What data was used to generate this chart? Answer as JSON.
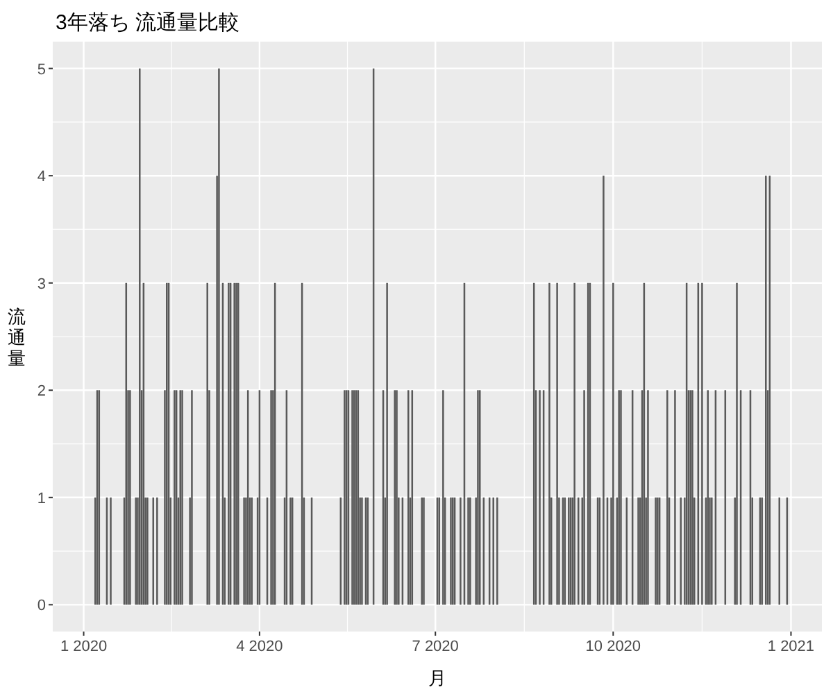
{
  "chart_data": {
    "type": "bar",
    "title": "3年落ち 流通量比較",
    "xlabel": "月",
    "ylabel": "流通量",
    "x": [
      "2020-01-07",
      "2020-01-08",
      "2020-01-09",
      "2020-01-13",
      "2020-01-15",
      "2020-01-22",
      "2020-01-23",
      "2020-01-24",
      "2020-01-25",
      "2020-01-28",
      "2020-01-29",
      "2020-01-30",
      "2020-01-31",
      "2020-02-01",
      "2020-02-02",
      "2020-02-03",
      "2020-02-06",
      "2020-02-08",
      "2020-02-12",
      "2020-02-13",
      "2020-02-14",
      "2020-02-15",
      "2020-02-17",
      "2020-02-18",
      "2020-02-19",
      "2020-02-20",
      "2020-02-21",
      "2020-02-25",
      "2020-02-26",
      "2020-03-05",
      "2020-03-06",
      "2020-03-10",
      "2020-03-11",
      "2020-03-13",
      "2020-03-14",
      "2020-03-16",
      "2020-03-17",
      "2020-03-19",
      "2020-03-20",
      "2020-03-21",
      "2020-03-24",
      "2020-03-25",
      "2020-03-26",
      "2020-03-27",
      "2020-03-28",
      "2020-03-31",
      "2020-04-01",
      "2020-04-05",
      "2020-04-07",
      "2020-04-08",
      "2020-04-09",
      "2020-04-14",
      "2020-04-15",
      "2020-04-17",
      "2020-04-18",
      "2020-04-23",
      "2020-04-24",
      "2020-04-28",
      "2020-05-13",
      "2020-05-15",
      "2020-05-16",
      "2020-05-17",
      "2020-05-19",
      "2020-05-20",
      "2020-05-21",
      "2020-05-22",
      "2020-05-23",
      "2020-05-24",
      "2020-05-26",
      "2020-05-27",
      "2020-05-30",
      "2020-06-04",
      "2020-06-05",
      "2020-06-06",
      "2020-06-10",
      "2020-06-11",
      "2020-06-12",
      "2020-06-14",
      "2020-06-17",
      "2020-06-18",
      "2020-06-19",
      "2020-06-24",
      "2020-06-25",
      "2020-07-02",
      "2020-07-03",
      "2020-07-05",
      "2020-07-06",
      "2020-07-09",
      "2020-07-10",
      "2020-07-11",
      "2020-07-14",
      "2020-07-16",
      "2020-07-18",
      "2020-07-19",
      "2020-07-22",
      "2020-07-23",
      "2020-07-24",
      "2020-07-26",
      "2020-07-29",
      "2020-07-31",
      "2020-08-02",
      "2020-08-21",
      "2020-08-22",
      "2020-08-24",
      "2020-08-26",
      "2020-08-29",
      "2020-08-30",
      "2020-09-02",
      "2020-09-03",
      "2020-09-05",
      "2020-09-06",
      "2020-09-08",
      "2020-09-09",
      "2020-09-10",
      "2020-09-11",
      "2020-09-13",
      "2020-09-15",
      "2020-09-16",
      "2020-09-18",
      "2020-09-19",
      "2020-09-23",
      "2020-09-24",
      "2020-09-26",
      "2020-09-28",
      "2020-09-30",
      "2020-10-01",
      "2020-10-03",
      "2020-10-04",
      "2020-10-05",
      "2020-10-08",
      "2020-10-11",
      "2020-10-14",
      "2020-10-15",
      "2020-10-16",
      "2020-10-17",
      "2020-10-18",
      "2020-10-19",
      "2020-10-23",
      "2020-10-24",
      "2020-10-25",
      "2020-10-29",
      "2020-10-30",
      "2020-11-02",
      "2020-11-05",
      "2020-11-07",
      "2020-11-08",
      "2020-11-09",
      "2020-11-10",
      "2020-11-11",
      "2020-11-12",
      "2020-11-14",
      "2020-11-16",
      "2020-11-18",
      "2020-11-19",
      "2020-11-20",
      "2020-11-21",
      "2020-11-23",
      "2020-11-28",
      "2020-12-03",
      "2020-12-04",
      "2020-12-06",
      "2020-12-11",
      "2020-12-12",
      "2020-12-16",
      "2020-12-17",
      "2020-12-19",
      "2020-12-20",
      "2020-12-21",
      "2020-12-26",
      "2020-12-30"
    ],
    "values": [
      1,
      2,
      2,
      1,
      1,
      1,
      3,
      2,
      2,
      1,
      1,
      5,
      2,
      3,
      1,
      1,
      1,
      1,
      2,
      3,
      3,
      1,
      2,
      2,
      1,
      2,
      2,
      1,
      2,
      3,
      2,
      4,
      5,
      3,
      1,
      3,
      3,
      3,
      3,
      3,
      1,
      1,
      2,
      1,
      1,
      1,
      2,
      1,
      2,
      2,
      3,
      1,
      2,
      1,
      1,
      3,
      1,
      1,
      1,
      2,
      2,
      2,
      2,
      2,
      2,
      2,
      1,
      1,
      1,
      1,
      5,
      2,
      1,
      3,
      2,
      2,
      1,
      1,
      2,
      1,
      2,
      1,
      1,
      1,
      1,
      2,
      1,
      1,
      1,
      1,
      1,
      3,
      1,
      1,
      1,
      2,
      2,
      1,
      1,
      1,
      1,
      3,
      2,
      2,
      2,
      3,
      1,
      3,
      1,
      1,
      1,
      1,
      1,
      1,
      3,
      1,
      1,
      2,
      3,
      3,
      1,
      1,
      4,
      1,
      1,
      3,
      1,
      2,
      2,
      1,
      2,
      1,
      1,
      2,
      3,
      1,
      2,
      1,
      1,
      1,
      2,
      1,
      2,
      1,
      1,
      3,
      2,
      2,
      2,
      1,
      3,
      3,
      1,
      2,
      1,
      1,
      2,
      2,
      1,
      3,
      2,
      2,
      1,
      1,
      1,
      4,
      2,
      4,
      1,
      1
    ],
    "color": "#595959",
    "xlim": [
      "2019-12-16",
      "2021-01-17"
    ],
    "xticks": [
      {
        "value": "2020-01-01",
        "label": "1 2020"
      },
      {
        "value": "2020-04-01",
        "label": "4 2020"
      },
      {
        "value": "2020-07-01",
        "label": "7 2020"
      },
      {
        "value": "2020-10-01",
        "label": "10 2020"
      },
      {
        "value": "2021-01-01",
        "label": "1 2021"
      }
    ],
    "ylim": [
      -0.25,
      5.25
    ],
    "yticks": [
      0,
      1,
      2,
      3,
      4,
      5
    ],
    "grid": true
  }
}
